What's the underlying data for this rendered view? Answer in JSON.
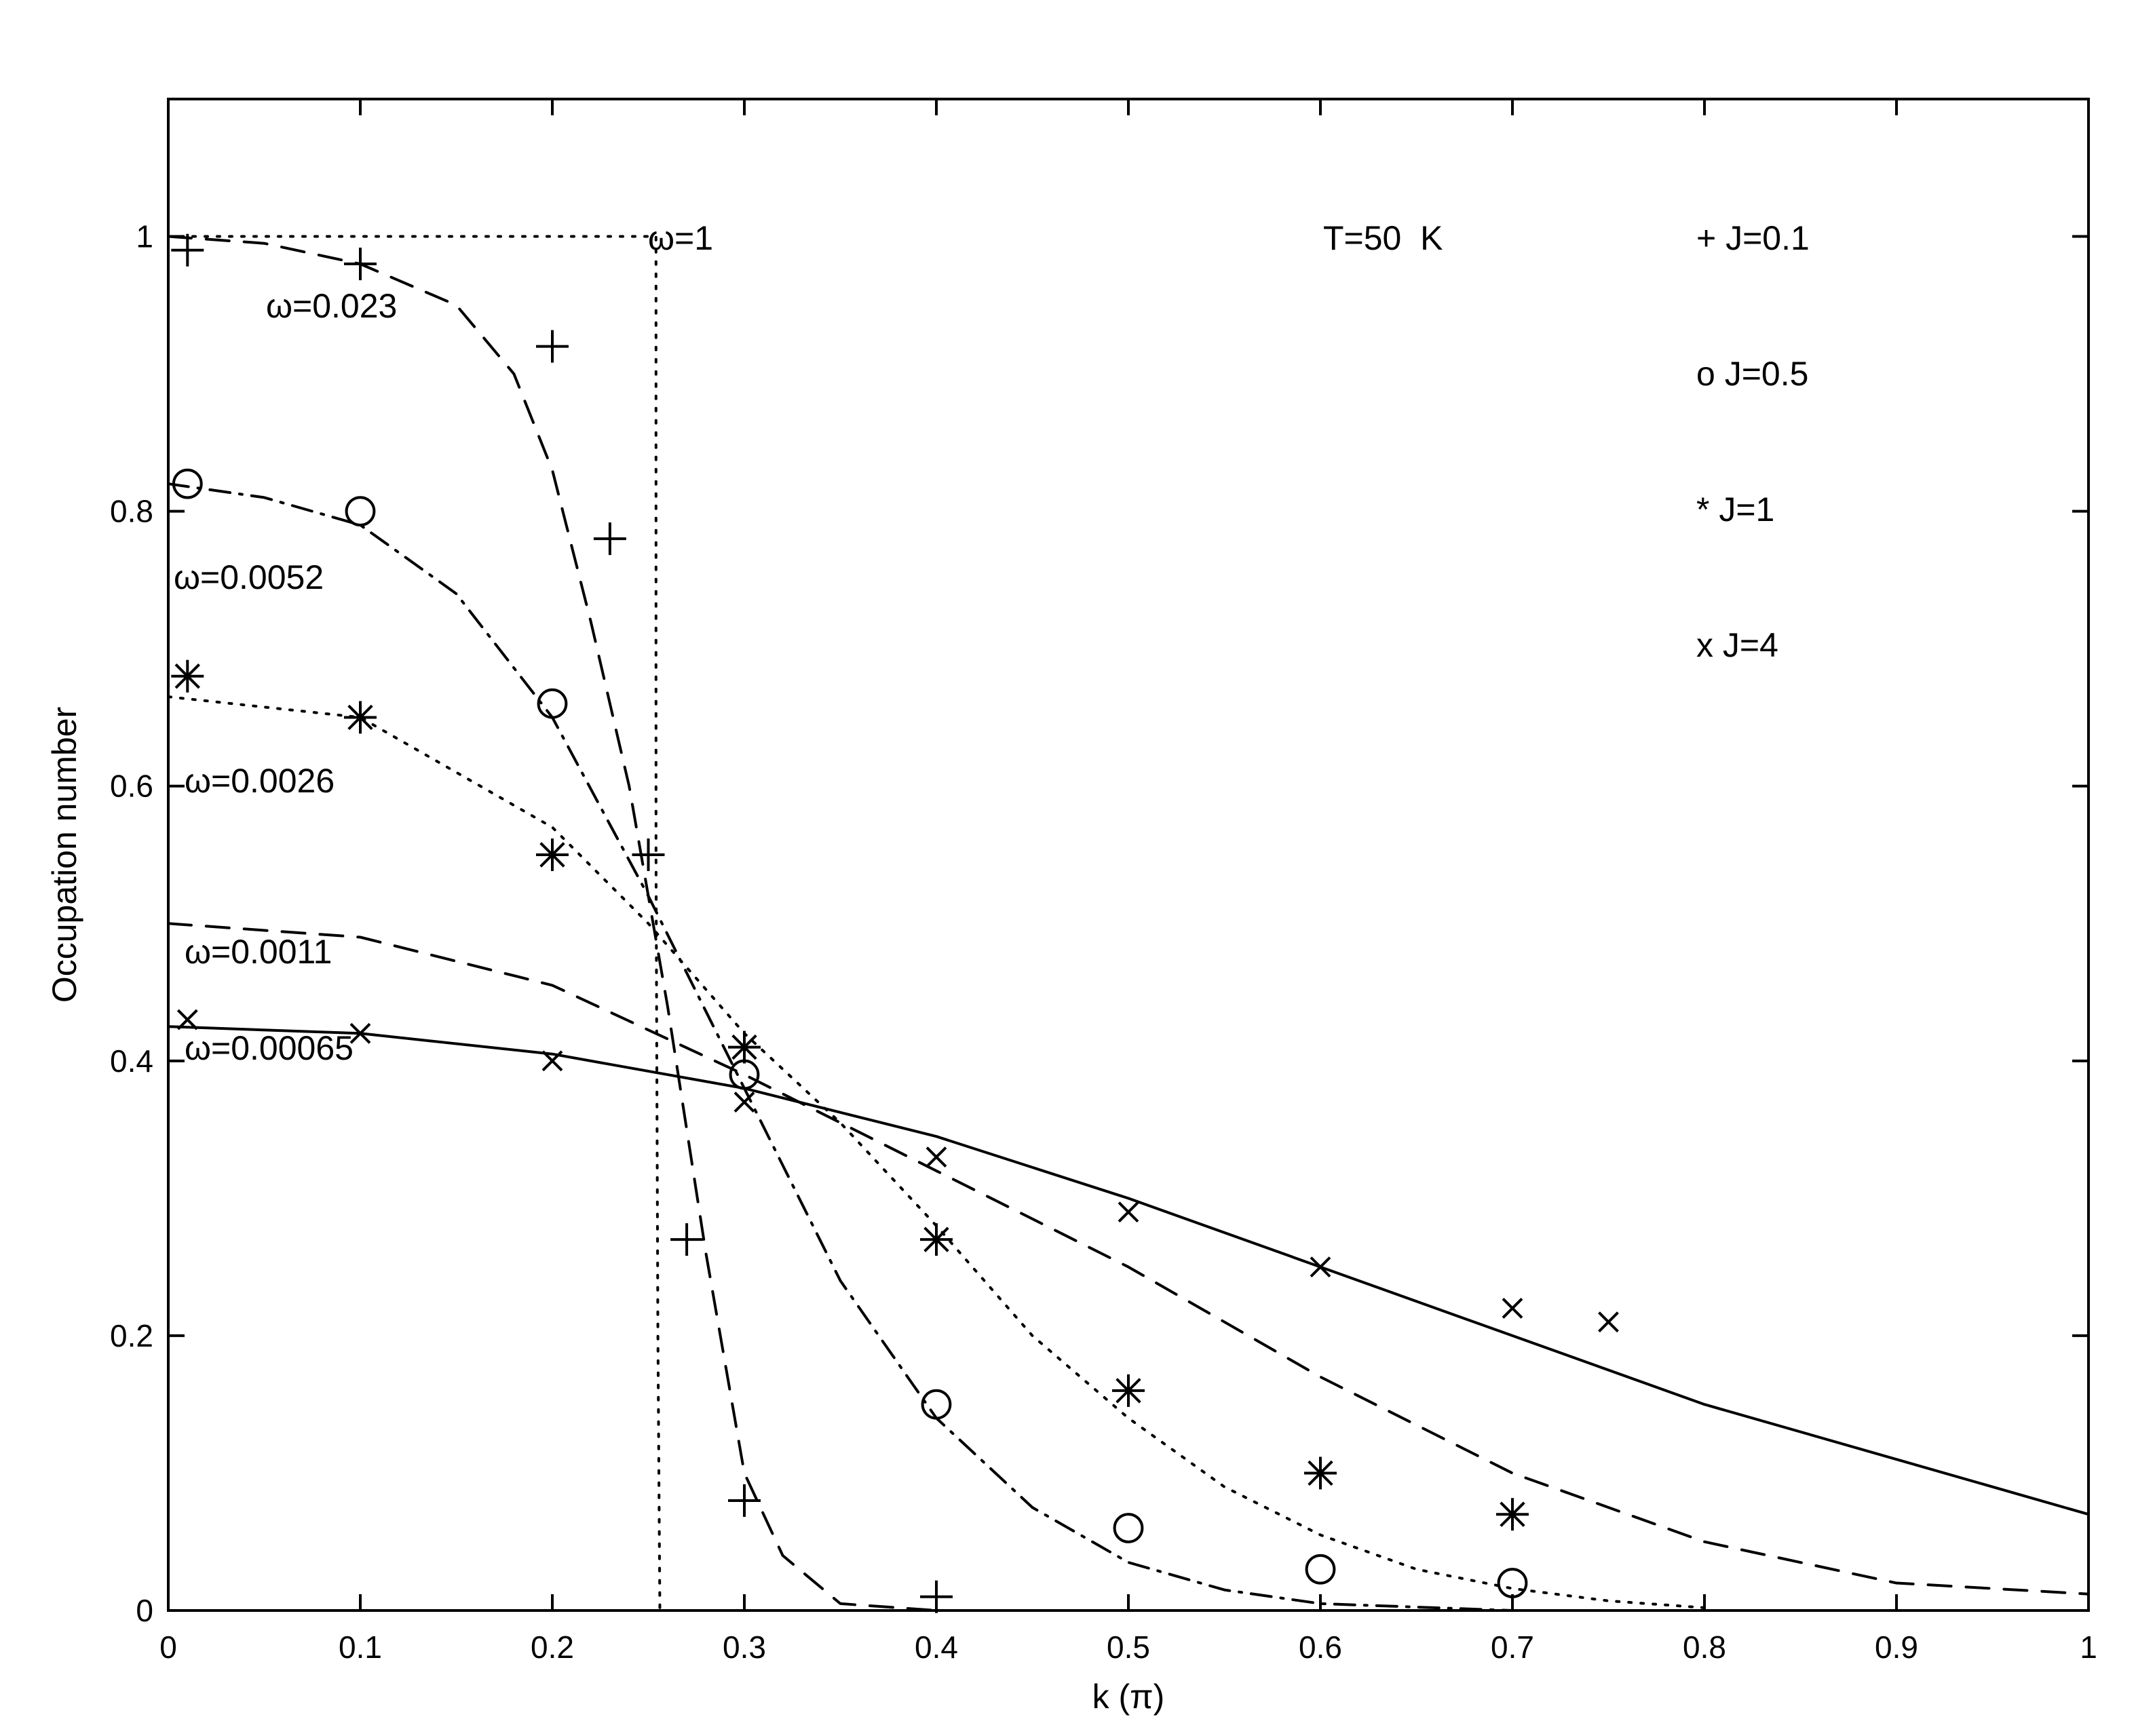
{
  "chart_data": {
    "type": "line",
    "title": "",
    "xlabel": "k (π)",
    "ylabel": "Occupation number",
    "xlim": [
      0,
      1
    ],
    "ylim": [
      0,
      1.1
    ],
    "xticks": [
      0,
      0.1,
      0.2,
      0.3,
      0.4,
      0.5,
      0.6,
      0.7,
      0.8,
      0.9,
      1
    ],
    "xtick_labels": [
      "0",
      "0.1",
      "0.2",
      "0.3",
      "0.4",
      "0.5",
      "0.6",
      "0.7",
      "0.8",
      "0.9",
      "1"
    ],
    "yticks": [
      0,
      0.2,
      0.4,
      0.6,
      0.8,
      1
    ],
    "ytick_labels": [
      "0",
      "0.2",
      "0.4",
      "0.6",
      "0.8",
      "1"
    ],
    "grid": false,
    "legend_position": "top-right",
    "annotation_temperature": "T=50  K",
    "curves": [
      {
        "label": "ω=1",
        "style": "dotted",
        "x": [
          0,
          0.254,
          0.254,
          0.255,
          0.256
        ],
        "y": [
          1.0,
          1.0,
          0.55,
          0.2,
          0.0
        ]
      },
      {
        "label": "ω=0.023",
        "style": "dashed",
        "x": [
          0,
          0.05,
          0.1,
          0.15,
          0.18,
          0.2,
          0.22,
          0.24,
          0.25,
          0.26,
          0.27,
          0.28,
          0.3,
          0.32,
          0.35,
          0.4
        ],
        "y": [
          1.0,
          0.995,
          0.98,
          0.95,
          0.9,
          0.83,
          0.72,
          0.6,
          0.52,
          0.44,
          0.35,
          0.26,
          0.1,
          0.04,
          0.005,
          0.0
        ]
      },
      {
        "label": "ω=0.0052",
        "style": "dashdot",
        "x": [
          0,
          0.05,
          0.1,
          0.15,
          0.2,
          0.25,
          0.3,
          0.35,
          0.4,
          0.45,
          0.5,
          0.55,
          0.6,
          0.7
        ],
        "y": [
          0.82,
          0.81,
          0.79,
          0.74,
          0.65,
          0.52,
          0.38,
          0.24,
          0.14,
          0.075,
          0.035,
          0.015,
          0.005,
          0.0
        ]
      },
      {
        "label": "ω=0.0026",
        "style": "dotted",
        "x": [
          0,
          0.1,
          0.2,
          0.25,
          0.3,
          0.35,
          0.4,
          0.45,
          0.5,
          0.55,
          0.6,
          0.65,
          0.7,
          0.75,
          0.8
        ],
        "y": [
          0.665,
          0.65,
          0.57,
          0.5,
          0.42,
          0.355,
          0.28,
          0.2,
          0.14,
          0.09,
          0.055,
          0.03,
          0.016,
          0.007,
          0.002
        ]
      },
      {
        "label": "ω=0.0011",
        "style": "dashed",
        "x": [
          0,
          0.1,
          0.2,
          0.3,
          0.4,
          0.5,
          0.6,
          0.7,
          0.8,
          0.9,
          1.0
        ],
        "y": [
          0.5,
          0.49,
          0.455,
          0.39,
          0.32,
          0.25,
          0.17,
          0.1,
          0.05,
          0.02,
          0.012
        ]
      },
      {
        "label": "ω=0.00065",
        "style": "solid",
        "x": [
          0,
          0.1,
          0.2,
          0.3,
          0.4,
          0.5,
          0.6,
          0.7,
          0.8,
          0.9,
          1.0
        ],
        "y": [
          0.425,
          0.42,
          0.405,
          0.38,
          0.345,
          0.3,
          0.25,
          0.2,
          0.15,
          0.11,
          0.07
        ]
      }
    ],
    "series": [
      {
        "name": "J=0.1",
        "marker": "+",
        "x": [
          0.01,
          0.1,
          0.2,
          0.23,
          0.25,
          0.27,
          0.3,
          0.4
        ],
        "y": [
          0.99,
          0.98,
          0.92,
          0.78,
          0.55,
          0.27,
          0.08,
          0.01
        ]
      },
      {
        "name": "J=0.5",
        "marker": "o",
        "x": [
          0.01,
          0.1,
          0.2,
          0.3,
          0.4,
          0.5,
          0.6,
          0.7
        ],
        "y": [
          0.82,
          0.8,
          0.66,
          0.39,
          0.15,
          0.06,
          0.03,
          0.02
        ]
      },
      {
        "name": "J=1",
        "marker": "*",
        "x": [
          0.01,
          0.1,
          0.2,
          0.3,
          0.4,
          0.5,
          0.6,
          0.7
        ],
        "y": [
          0.68,
          0.65,
          0.55,
          0.41,
          0.27,
          0.16,
          0.1,
          0.07
        ]
      },
      {
        "name": "J=4",
        "marker": "x",
        "x": [
          0.01,
          0.1,
          0.2,
          0.3,
          0.4,
          0.5,
          0.6,
          0.7,
          0.75
        ],
        "y": [
          0.43,
          0.42,
          0.4,
          0.37,
          0.33,
          0.29,
          0.25,
          0.22,
          0.21
        ]
      }
    ],
    "legend": [
      {
        "marker": "+",
        "label": "+ J=0.1"
      },
      {
        "marker": "o",
        "label": "o J=0.5"
      },
      {
        "marker": "*",
        "label": "* J=1"
      },
      {
        "marker": "x",
        "label": "x J=4"
      }
    ]
  }
}
